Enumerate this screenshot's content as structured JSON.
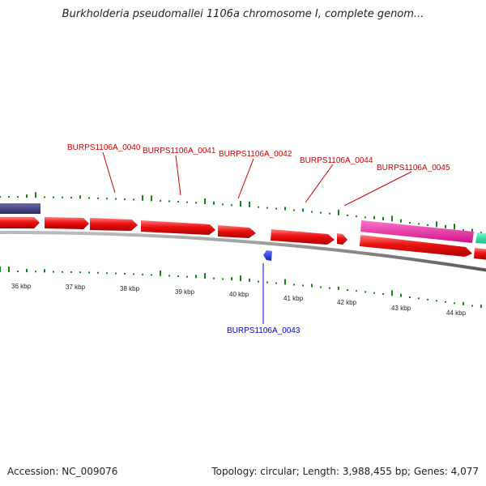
{
  "title": "Burkholderia pseudomallei 1106a chromosome I, complete genom...",
  "footer": {
    "accession_label": "Accession:",
    "accession": "NC_009076",
    "topology_label": "Topology:",
    "topology": "circular",
    "length_label": "Length:",
    "length": "3,988,455 bp",
    "genes_label": "Genes:",
    "genes": "4,077"
  },
  "colors": {
    "forward_gene": "#ee1111",
    "reverse_gene": "#2233dd",
    "rrna_gene": "#ee22aa",
    "other_gene": "#22ddaa",
    "dark_feature": "#3a3a80",
    "gc_ticks": "#118811",
    "backbone": "#888888",
    "forward_label": "#cc0000",
    "reverse_label": "#0000cc"
  },
  "scale": {
    "unit": "kbp",
    "tick_labels": [
      "36 kbp",
      "37 kbp",
      "38 kbp",
      "39 kbp",
      "40 kbp",
      "41 kbp",
      "42 kbp",
      "43 kbp",
      "44 kbp"
    ]
  },
  "gene_labels": [
    {
      "name": "BURPS1106A_0040",
      "strand": "forward"
    },
    {
      "name": "BURPS1106A_0041",
      "strand": "forward"
    },
    {
      "name": "BURPS1106A_0042",
      "strand": "forward"
    },
    {
      "name": "BURPS1106A_0044",
      "strand": "forward"
    },
    {
      "name": "BURPS1106A_0045",
      "strand": "forward"
    },
    {
      "name": "BURPS1106A_0043",
      "strand": "reverse"
    }
  ]
}
